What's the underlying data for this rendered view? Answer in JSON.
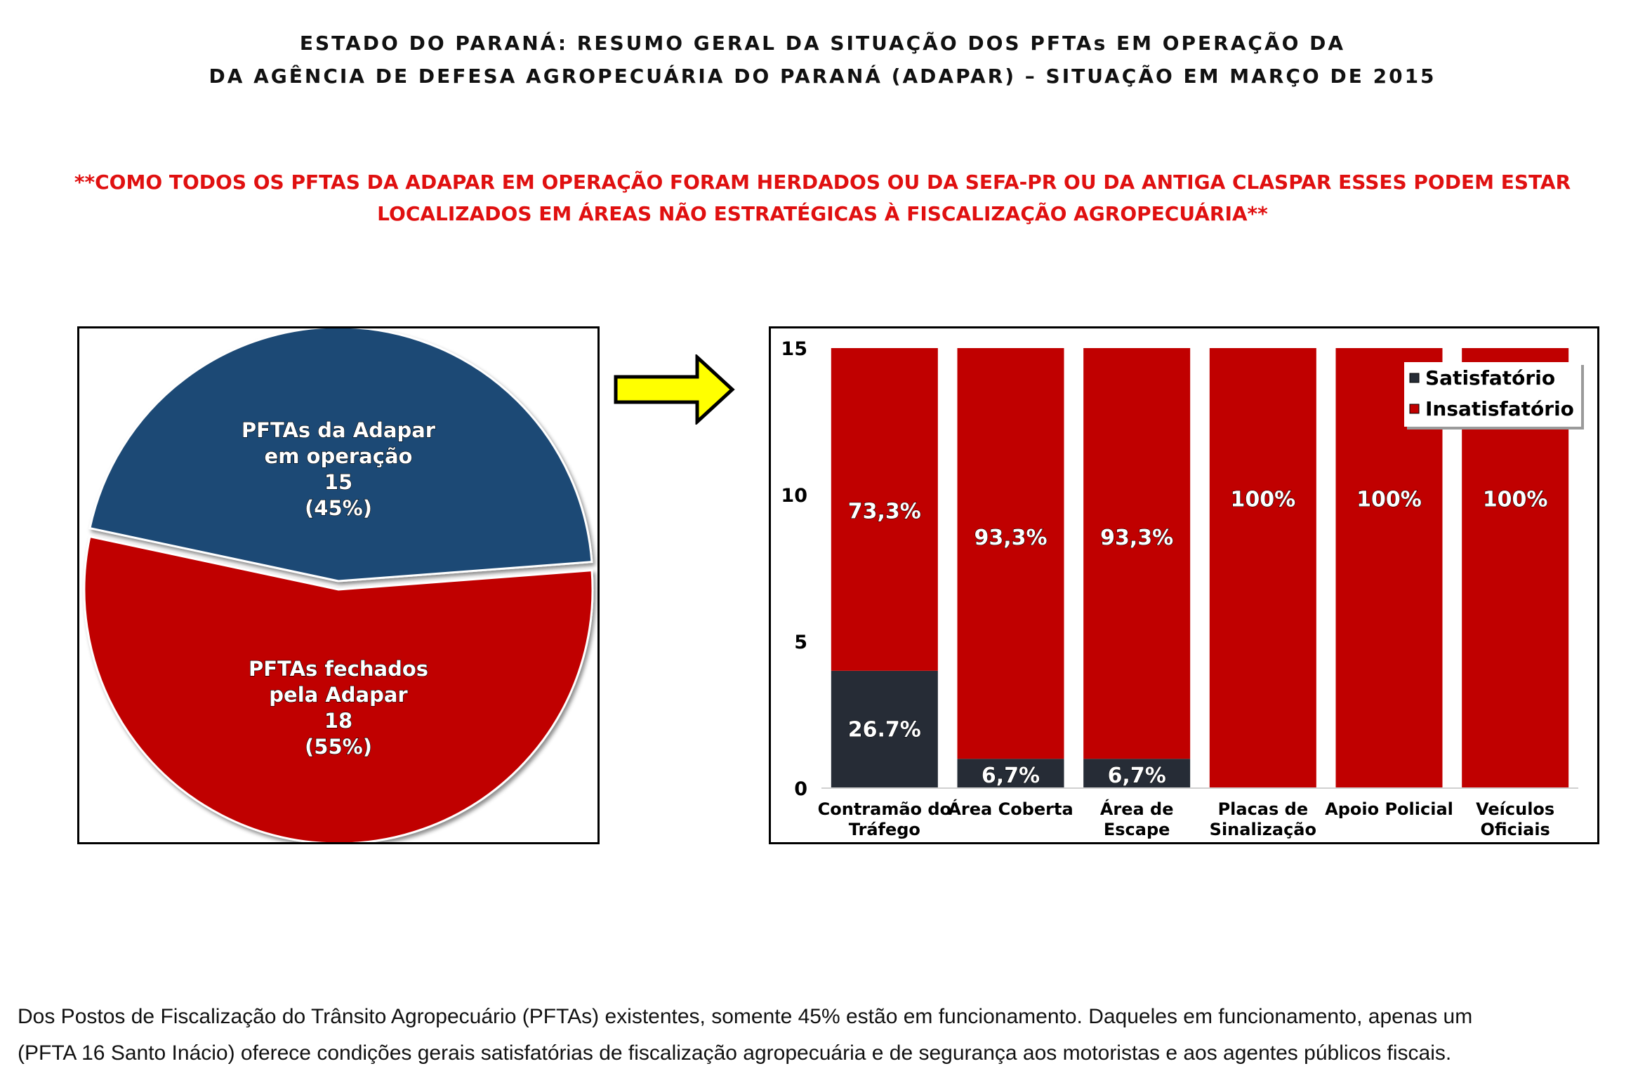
{
  "title_line1": "ESTADO DO PARANÁ: RESUMO GERAL DA SITUAÇÃO DOS PFTAs EM OPERAÇÃO DA",
  "title_line2": "DA AGÊNCIA DE DEFESA AGROPECUÁRIA DO PARANÁ (ADAPAR) – SITUAÇÃO EM MARÇO DE 2015",
  "note_line1": "**COMO TODOS OS PFTAS DA ADAPAR EM OPERAÇÃO FORAM HERDADOS OU DA SEFA-PR OU DA ANTIGA CLASPAR ESSES PODEM ESTAR",
  "note_line2": "LOCALIZADOS EM ÁREAS NÃO ESTRATÉGICAS À FISCALIZAÇÃO AGROPECUÁRIA**",
  "footer_line1": "Dos Postos de Fiscalização do Trânsito Agropecuário (PFTAs) existentes, somente 45% estão em funcionamento. Daqueles em funcionamento, apenas um",
  "footer_line2": "(PFTA 16 Santo Inácio) oferece condições gerais satisfatórias de fiscalização agropecuária e de segurança aos motoristas e aos agentes públicos fiscais.",
  "colors": {
    "blue": "#1f4a74",
    "red": "#c00000",
    "dark": "#262c36",
    "note_red": "#e01010",
    "arrow_yellow": "#ffff00"
  },
  "chart_data": [
    {
      "type": "pie",
      "slices": [
        {
          "label_lines": [
            "PFTAs da Adapar",
            "em operação",
            "15",
            "(45%)"
          ],
          "value": 15,
          "percent": 45,
          "color": "#1f4a74"
        },
        {
          "label_lines": [
            "PFTAs fechados",
            "pela Adapar",
            "18",
            "(55%)"
          ],
          "value": 18,
          "percent": 55,
          "color": "#c00000"
        }
      ]
    },
    {
      "type": "bar",
      "stacked": true,
      "categories": [
        [
          "Contramão do",
          "Tráfego"
        ],
        [
          "Área Coberta"
        ],
        [
          "Área de",
          "Escape"
        ],
        [
          "Placas de",
          "Sinalização"
        ],
        [
          "Apoio Policial"
        ],
        [
          "Veículos",
          "Oficiais"
        ]
      ],
      "series": [
        {
          "name": "Satisfatório",
          "color": "#262c36",
          "values": [
            4,
            1,
            1,
            0,
            0,
            0
          ],
          "labels": [
            "26.7%",
            "6,7%",
            "6,7%",
            "",
            "",
            ""
          ]
        },
        {
          "name": "Insatisfatório",
          "color": "#c00000",
          "values": [
            11,
            14,
            14,
            15,
            15,
            15
          ],
          "labels": [
            "73,3%",
            "93,3%",
            "93,3%",
            "100%",
            "100%",
            "100%"
          ]
        }
      ],
      "ylim": [
        0,
        15
      ],
      "yticks": [
        0,
        5,
        10,
        15
      ],
      "legend_position": "top-right",
      "grid": false
    }
  ]
}
